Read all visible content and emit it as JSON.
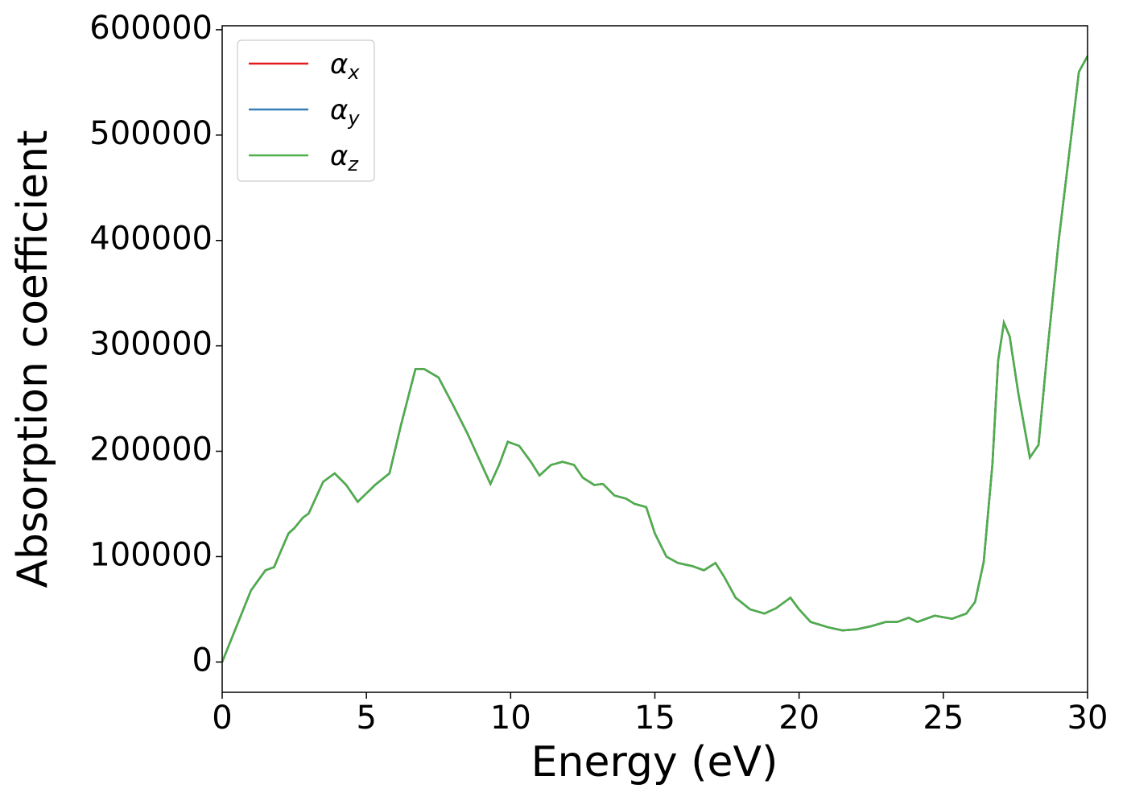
{
  "chart_data": {
    "type": "line",
    "xlabel": "Energy (eV)",
    "ylabel": "Absorption coefficient",
    "x": [
      0,
      0.5,
      1.0,
      1.5,
      1.8,
      2.0,
      2.3,
      2.5,
      2.8,
      3.0,
      3.5,
      3.9,
      4.3,
      4.7,
      5.0,
      5.3,
      5.8,
      6.2,
      6.7,
      7.0,
      7.5,
      8.0,
      8.5,
      9.0,
      9.3,
      9.6,
      9.9,
      10.3,
      10.7,
      11.0,
      11.4,
      11.8,
      12.2,
      12.5,
      12.9,
      13.2,
      13.6,
      14.0,
      14.3,
      14.7,
      15.0,
      15.4,
      15.8,
      16.3,
      16.7,
      17.1,
      17.4,
      17.8,
      18.3,
      18.8,
      19.2,
      19.7,
      20.0,
      20.4,
      21.0,
      21.5,
      22.0,
      22.5,
      23.0,
      23.4,
      23.8,
      24.1,
      24.7,
      25.3,
      25.8,
      26.1,
      26.4,
      26.7,
      26.9,
      27.1,
      27.3,
      27.6,
      28.0,
      28.3,
      28.6,
      29.0,
      29.4,
      29.7,
      30.0
    ],
    "series": [
      {
        "name": "αx",
        "color": "#e41a1c",
        "values": [
          0,
          34000,
          68000,
          87000,
          90000,
          103000,
          122000,
          127000,
          137000,
          141000,
          171000,
          179000,
          168000,
          152000,
          160000,
          168000,
          179000,
          225000,
          278000,
          278000,
          270000,
          244000,
          217000,
          187000,
          169000,
          187000,
          209000,
          205000,
          190000,
          177000,
          187000,
          190000,
          187000,
          175000,
          168000,
          169000,
          158000,
          155000,
          150000,
          147000,
          122000,
          100000,
          94000,
          91000,
          87000,
          94000,
          81000,
          61000,
          50000,
          46000,
          51000,
          61000,
          50000,
          38000,
          33000,
          30000,
          31000,
          34000,
          38000,
          38000,
          42000,
          38000,
          44000,
          41000,
          46000,
          57000,
          95000,
          187000,
          286000,
          322000,
          309000,
          255000,
          194000,
          206000,
          293000,
          400000,
          491000,
          560000,
          575000
        ]
      },
      {
        "name": "αy",
        "color": "#377eb8",
        "values": [
          0,
          34000,
          68000,
          87000,
          90000,
          103000,
          122000,
          127000,
          137000,
          141000,
          171000,
          179000,
          168000,
          152000,
          160000,
          168000,
          179000,
          225000,
          278000,
          278000,
          270000,
          244000,
          217000,
          187000,
          169000,
          187000,
          209000,
          205000,
          190000,
          177000,
          187000,
          190000,
          187000,
          175000,
          168000,
          169000,
          158000,
          155000,
          150000,
          147000,
          122000,
          100000,
          94000,
          91000,
          87000,
          94000,
          81000,
          61000,
          50000,
          46000,
          51000,
          61000,
          50000,
          38000,
          33000,
          30000,
          31000,
          34000,
          38000,
          38000,
          42000,
          38000,
          44000,
          41000,
          46000,
          57000,
          95000,
          187000,
          286000,
          322000,
          309000,
          255000,
          194000,
          206000,
          293000,
          400000,
          491000,
          560000,
          575000
        ]
      },
      {
        "name": "αz",
        "color": "#4daf4a",
        "values": [
          0,
          34000,
          68000,
          87000,
          90000,
          103000,
          122000,
          127000,
          137000,
          141000,
          171000,
          179000,
          168000,
          152000,
          160000,
          168000,
          179000,
          225000,
          278000,
          278000,
          270000,
          244000,
          217000,
          187000,
          169000,
          187000,
          209000,
          205000,
          190000,
          177000,
          187000,
          190000,
          187000,
          175000,
          168000,
          169000,
          158000,
          155000,
          150000,
          147000,
          122000,
          100000,
          94000,
          91000,
          87000,
          94000,
          81000,
          61000,
          50000,
          46000,
          51000,
          61000,
          50000,
          38000,
          33000,
          30000,
          31000,
          34000,
          38000,
          38000,
          42000,
          38000,
          44000,
          41000,
          46000,
          57000,
          95000,
          187000,
          286000,
          322000,
          309000,
          255000,
          194000,
          206000,
          293000,
          400000,
          491000,
          560000,
          575000
        ]
      }
    ],
    "xlim": [
      0,
      30
    ],
    "xticks": [
      0,
      5,
      10,
      15,
      20,
      25,
      30
    ],
    "ylim": [
      -28750,
      603750
    ],
    "yticks": [
      0,
      100000,
      200000,
      300000,
      400000,
      500000,
      600000
    ],
    "legend": "upper left",
    "grid": false
  }
}
